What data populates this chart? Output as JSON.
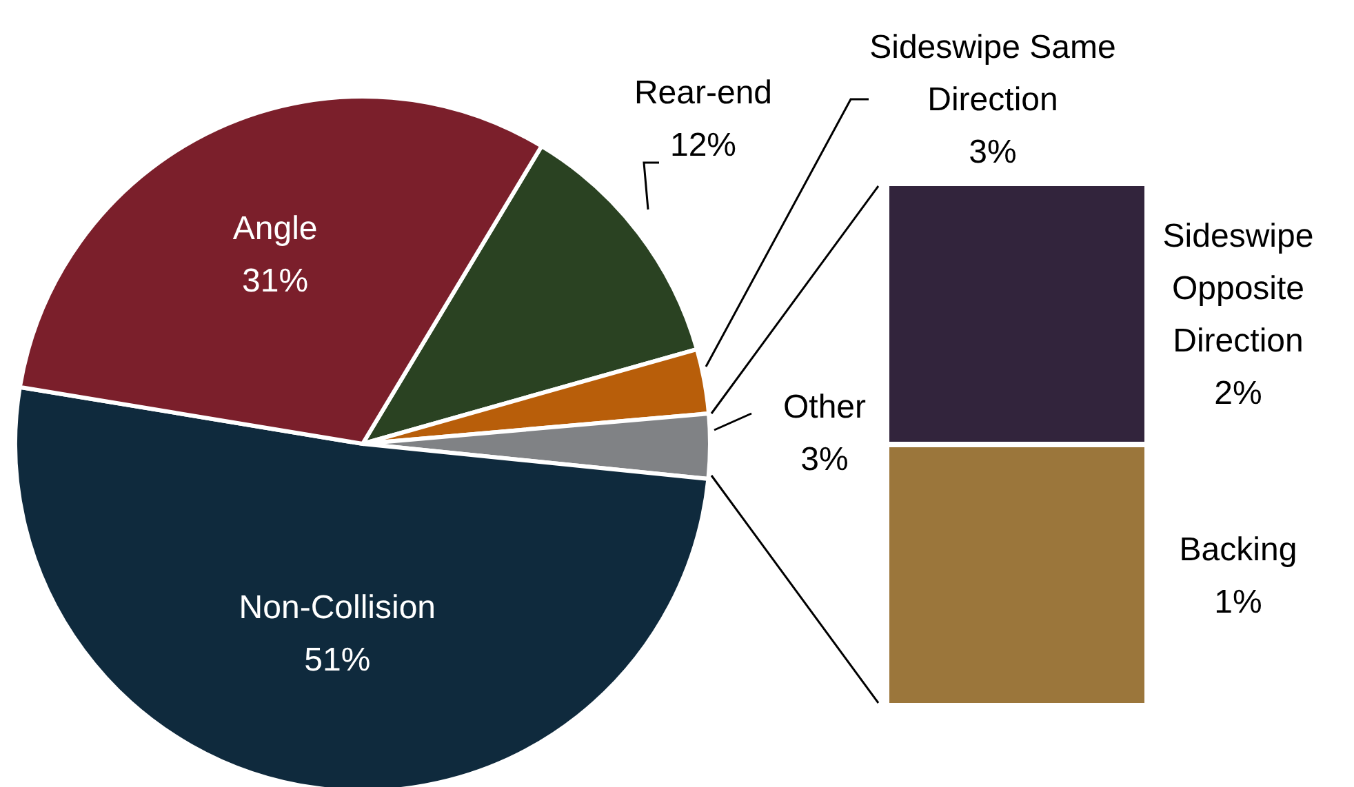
{
  "chart_data": [
    {
      "type": "pie",
      "categories": [
        "Rear-end",
        "Sideswipe Same Direction",
        "Other",
        "Non-Collision",
        "Angle"
      ],
      "values": [
        12,
        3,
        3,
        51,
        31
      ],
      "value_labels": [
        "12%",
        "3%",
        "3%",
        "51%",
        "31%"
      ],
      "colors": [
        "#2a4222",
        "#b85e0a",
        "#808285",
        "#0f2a3d",
        "#7b1f2b"
      ]
    },
    {
      "type": "other",
      "categories": [
        "Sideswipe Opposite Direction",
        "Backing"
      ],
      "values": [
        2,
        1
      ],
      "value_labels": [
        "2%",
        "1%"
      ],
      "colors": [
        "#32243c",
        "#9b763b"
      ]
    }
  ]
}
